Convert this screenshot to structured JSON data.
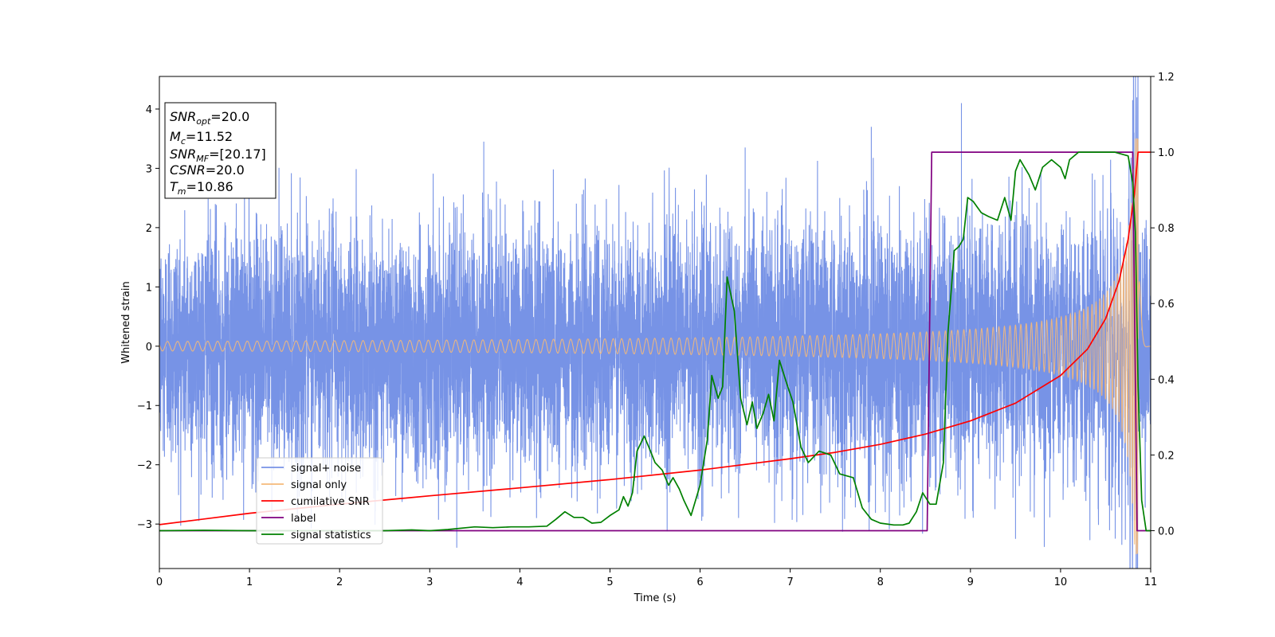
{
  "chart_data": {
    "type": "line",
    "xlabel": "Time (s)",
    "ylabel": "Whitened strain",
    "xlim": [
      0,
      11
    ],
    "ylim_left": [
      -3.75,
      4.55
    ],
    "ylim_right": [
      -0.1,
      1.2
    ],
    "x_ticks": [
      0,
      1,
      2,
      3,
      4,
      5,
      6,
      7,
      8,
      9,
      10,
      11
    ],
    "y_ticks_left": [
      -3,
      -2,
      -1,
      0,
      1,
      2,
      3,
      4
    ],
    "y_tick_labels_left": [
      "−3",
      "−2",
      "−1",
      "0",
      "1",
      "2",
      "3",
      "4"
    ],
    "y_ticks_right": [
      0.0,
      0.2,
      0.4,
      0.6,
      0.8,
      1.0,
      1.2
    ],
    "y_tick_labels_right": [
      "0.0",
      "0.2",
      "0.4",
      "0.6",
      "0.8",
      "1.0",
      "1.2"
    ],
    "grid": false,
    "legend_placement": "lower-left",
    "info_box": {
      "lines": [
        {
          "main": "SNR",
          "sub": "opt",
          "value": "=20.0"
        },
        {
          "main": "M",
          "sub": "c",
          "value": "=11.52"
        },
        {
          "main": "SNR",
          "sub": "MF",
          "value": "=[20.17]"
        },
        {
          "main": "CSNR",
          "sub": "",
          "value": "=20.0"
        },
        {
          "main": "T",
          "sub": "m",
          "value": "=10.86"
        }
      ]
    },
    "series": [
      {
        "name": "signal+ noise",
        "color": "#7793e6",
        "axis": "left",
        "kind": "noise",
        "noise_std": 1.0,
        "noise_peaks": [
          [
            3.3,
            -3.4
          ],
          [
            8.9,
            4.1
          ],
          [
            10.8,
            4.15
          ],
          [
            6.5,
            3.35
          ],
          [
            7.9,
            3.7
          ],
          [
            3.6,
            3.45
          ],
          [
            9.5,
            -3.25
          ]
        ]
      },
      {
        "name": "signal only",
        "color": "#f4b97a",
        "axis": "left",
        "kind": "chirp",
        "merger_time": 10.86,
        "peak_amplitude": 3.5
      },
      {
        "name": "cumilative SNR",
        "color": "#ff0000",
        "axis": "right",
        "x": [
          0,
          1,
          2,
          3,
          4,
          5,
          6,
          7,
          7.5,
          8,
          8.5,
          9,
          9.5,
          10,
          10.3,
          10.5,
          10.65,
          10.75,
          10.82,
          10.86,
          11
        ],
        "y": [
          0.016,
          0.046,
          0.07,
          0.092,
          0.113,
          0.135,
          0.16,
          0.19,
          0.207,
          0.228,
          0.255,
          0.29,
          0.337,
          0.41,
          0.48,
          0.56,
          0.66,
          0.77,
          0.89,
          1.0,
          1.0
        ]
      },
      {
        "name": "label",
        "color": "#800080",
        "axis": "right",
        "x": [
          0,
          8.52,
          8.57,
          10.8,
          10.85,
          11
        ],
        "y": [
          0,
          0,
          1,
          1,
          0,
          0
        ]
      },
      {
        "name": "signal statistics",
        "color": "#008000",
        "axis": "right",
        "x": [
          0,
          0.5,
          1,
          1.5,
          2,
          2.5,
          2.8,
          3,
          3.2,
          3.5,
          3.7,
          3.9,
          4.1,
          4.3,
          4.4,
          4.5,
          4.6,
          4.7,
          4.8,
          4.9,
          5,
          5.1,
          5.15,
          5.2,
          5.25,
          5.3,
          5.38,
          5.45,
          5.5,
          5.58,
          5.65,
          5.7,
          5.77,
          5.82,
          5.9,
          6.0,
          6.08,
          6.13,
          6.2,
          6.25,
          6.3,
          6.38,
          6.45,
          6.52,
          6.58,
          6.63,
          6.7,
          6.76,
          6.82,
          6.88,
          6.96,
          7.03,
          7.12,
          7.2,
          7.32,
          7.45,
          7.55,
          7.7,
          7.8,
          7.9,
          8.0,
          8.15,
          8.25,
          8.32,
          8.4,
          8.47,
          8.55,
          8.62,
          8.7,
          8.75,
          8.82,
          8.87,
          8.92,
          8.97,
          9.03,
          9.12,
          9.2,
          9.3,
          9.38,
          9.45,
          9.5,
          9.55,
          9.65,
          9.72,
          9.8,
          9.9,
          10.0,
          10.05,
          10.1,
          10.2,
          10.4,
          10.6,
          10.75,
          10.8,
          10.83,
          10.86,
          10.9,
          10.95,
          11
        ],
        "y": [
          0.0,
          0.001,
          0.0,
          0.0,
          0.0,
          0.0,
          0.002,
          0.0,
          0.003,
          0.01,
          0.008,
          0.01,
          0.01,
          0.012,
          0.03,
          0.05,
          0.035,
          0.035,
          0.02,
          0.022,
          0.04,
          0.055,
          0.09,
          0.065,
          0.1,
          0.21,
          0.25,
          0.21,
          0.18,
          0.16,
          0.12,
          0.14,
          0.11,
          0.08,
          0.04,
          0.12,
          0.24,
          0.41,
          0.35,
          0.38,
          0.67,
          0.58,
          0.35,
          0.28,
          0.34,
          0.27,
          0.31,
          0.36,
          0.29,
          0.45,
          0.39,
          0.34,
          0.22,
          0.18,
          0.21,
          0.2,
          0.15,
          0.14,
          0.06,
          0.03,
          0.02,
          0.015,
          0.015,
          0.02,
          0.05,
          0.1,
          0.07,
          0.07,
          0.18,
          0.52,
          0.74,
          0.75,
          0.77,
          0.88,
          0.87,
          0.84,
          0.83,
          0.82,
          0.88,
          0.82,
          0.95,
          0.98,
          0.94,
          0.9,
          0.96,
          0.98,
          0.96,
          0.93,
          0.98,
          1.0,
          1.0,
          1.0,
          0.99,
          0.92,
          0.79,
          0.38,
          0.08,
          0.0,
          0.0
        ]
      }
    ]
  }
}
